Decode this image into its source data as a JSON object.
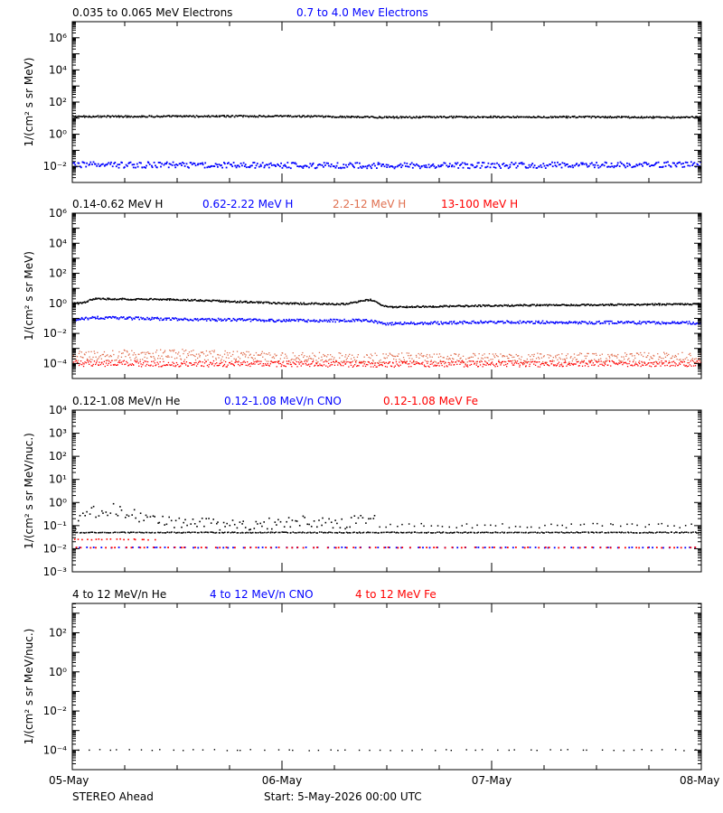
{
  "footer": {
    "spacecraft": "STEREO Ahead",
    "start_label": "Start:  5-May-2026 00:00 UTC"
  },
  "x_tick_labels": [
    "05-May",
    "06-May",
    "07-May",
    "08-May"
  ],
  "colors": {
    "black": "#000000",
    "blue": "#0000ff",
    "salmon": "#e07050",
    "red": "#ff0000",
    "axis": "#000000"
  },
  "chart_data": [
    {
      "type": "scatter",
      "ylabel": "1/(cm² s sr MeV)",
      "ylim_log10": [
        -3,
        7
      ],
      "yticks": [
        {
          "exp": 0,
          "label": "10⁰"
        },
        {
          "exp": 2,
          "label": "10²"
        },
        {
          "exp": 4,
          "label": "10⁴"
        },
        {
          "exp": 6,
          "label": "10⁶"
        },
        {
          "exp": -2,
          "label": "10⁻²"
        }
      ],
      "xlim_days": [
        0,
        3
      ],
      "legend": [
        {
          "label": "0.035 to 0.065 MeV Electrons",
          "color": "#000000"
        },
        {
          "label": "0.7 to 4.0 Mev Electrons",
          "color": "#0000ff"
        }
      ],
      "series": [
        {
          "name": "0.035 to 0.065 MeV Electrons",
          "color": "#000000",
          "profile": [
            [
              0,
              1.1
            ],
            [
              1.0,
              1.12
            ],
            [
              1.5,
              1.05
            ],
            [
              2.0,
              1.08
            ],
            [
              3.0,
              1.05
            ]
          ],
          "scatter": 0.05,
          "density": 620,
          "dot": 1.6
        },
        {
          "name": "0.7 to 4.0 Mev Electrons",
          "color": "#0000ff",
          "profile": [
            [
              0,
              -1.9
            ],
            [
              1.5,
              -1.95
            ],
            [
              3.0,
              -1.9
            ]
          ],
          "scatter": 0.18,
          "density": 520,
          "dot": 1.8
        }
      ]
    },
    {
      "type": "scatter",
      "ylabel": "1/(cm² s sr MeV)",
      "ylim_log10": [
        -5,
        6
      ],
      "yticks": [
        {
          "exp": -4,
          "label": "10⁻⁴"
        },
        {
          "exp": -2,
          "label": "10⁻²"
        },
        {
          "exp": 0,
          "label": "10⁰"
        },
        {
          "exp": 2,
          "label": "10²"
        },
        {
          "exp": 4,
          "label": "10⁴"
        },
        {
          "exp": 6,
          "label": "10⁶"
        }
      ],
      "xlim_days": [
        0,
        3
      ],
      "legend": [
        {
          "label": "0.14-0.62 MeV H",
          "color": "#000000"
        },
        {
          "label": "0.62-2.22 MeV H",
          "color": "#0000ff"
        },
        {
          "label": "2.2-12 MeV H",
          "color": "#e07050"
        },
        {
          "label": "13-100 MeV H",
          "color": "#ff0000"
        }
      ],
      "series": [
        {
          "name": "0.14-0.62 MeV H",
          "color": "#000000",
          "profile": [
            [
              0,
              0.0
            ],
            [
              0.05,
              0.0
            ],
            [
              0.1,
              0.3
            ],
            [
              0.5,
              0.25
            ],
            [
              0.7,
              0.15
            ],
            [
              1.0,
              0.0
            ],
            [
              1.3,
              -0.05
            ],
            [
              1.42,
              0.25
            ],
            [
              1.5,
              -0.25
            ],
            [
              2.0,
              -0.15
            ],
            [
              2.5,
              -0.1
            ],
            [
              3.0,
              -0.05
            ]
          ],
          "scatter": 0.05,
          "density": 640,
          "dot": 1.6
        },
        {
          "name": "0.62-2.22 MeV H",
          "color": "#0000ff",
          "profile": [
            [
              0,
              -1.1
            ],
            [
              0.1,
              -0.95
            ],
            [
              0.5,
              -1.05
            ],
            [
              1.0,
              -1.15
            ],
            [
              1.4,
              -1.15
            ],
            [
              1.5,
              -1.35
            ],
            [
              2.0,
              -1.25
            ],
            [
              3.0,
              -1.3
            ]
          ],
          "scatter": 0.09,
          "density": 600,
          "dot": 1.6
        },
        {
          "name": "2.2-12 MeV H",
          "color": "#e07050",
          "profile": [
            [
              0,
              -3.5
            ],
            [
              0.5,
              -3.4
            ],
            [
              1.0,
              -3.6
            ],
            [
              2.0,
              -3.7
            ],
            [
              3.0,
              -3.6
            ]
          ],
          "scatter": 0.35,
          "density": 700,
          "dot": 1.3
        },
        {
          "name": "13-100 MeV H",
          "color": "#ff0000",
          "profile": [
            [
              0,
              -4.0
            ],
            [
              1.5,
              -4.05
            ],
            [
              3.0,
              -4.0
            ]
          ],
          "scatter": 0.2,
          "density": 700,
          "dot": 1.3
        }
      ]
    },
    {
      "type": "scatter",
      "ylabel": "1/(cm² s sr MeV/nuc.)",
      "ylim_log10": [
        -3,
        4
      ],
      "yticks": [
        {
          "exp": -3,
          "label": "10⁻³"
        },
        {
          "exp": -2,
          "label": "10⁻²"
        },
        {
          "exp": -1,
          "label": "10⁻¹"
        },
        {
          "exp": 0,
          "label": "10⁰"
        },
        {
          "exp": 1,
          "label": "10¹"
        },
        {
          "exp": 2,
          "label": "10²"
        },
        {
          "exp": 3,
          "label": "10³"
        },
        {
          "exp": 4,
          "label": "10⁴"
        }
      ],
      "xlim_days": [
        0,
        3
      ],
      "legend": [
        {
          "label": "0.12-1.08 MeV/n He",
          "color": "#000000"
        },
        {
          "label": "0.12-1.08 MeV/n CNO",
          "color": "#0000ff"
        },
        {
          "label": "0.12-1.08 MeV Fe",
          "color": "#ff0000"
        }
      ],
      "series": [
        {
          "name": "0.12-1.08 MeV/n He",
          "color": "#000000",
          "profile": [
            [
              0,
              -1.3
            ],
            [
              3.0,
              -1.3
            ]
          ],
          "scatter": 0.02,
          "density": 380,
          "dot": 1.6
        },
        {
          "name": "0.12-1.08 MeV/n He (enhanced)",
          "color": "#000000",
          "profile": [
            [
              0.0,
              -1.0
            ],
            [
              0.1,
              -0.4
            ],
            [
              0.2,
              -0.3
            ],
            [
              0.4,
              -0.8
            ],
            [
              0.8,
              -1.0
            ],
            [
              1.1,
              -0.8
            ],
            [
              1.3,
              -0.9
            ],
            [
              1.43,
              -0.6
            ]
          ],
          "range": [
            0,
            1.45
          ],
          "scatter": 0.25,
          "density": 130,
          "dot": 1.6
        },
        {
          "name": "0.12-1.08 MeV/n He (sparse)",
          "color": "#000000",
          "profile": [
            [
              1.45,
              -1.0
            ],
            [
              3.0,
              -1.0
            ]
          ],
          "range": [
            1.45,
            3.0
          ],
          "scatter": 0.1,
          "density": 55,
          "dot": 1.5
        },
        {
          "name": "0.12-1.08 MeV/n CNO",
          "color": "#0000ff",
          "profile": [
            [
              0,
              -1.95
            ],
            [
              3.0,
              -1.95
            ]
          ],
          "scatter": 0.01,
          "density": 90,
          "dot": 1.8
        },
        {
          "name": "0.12-1.08 MeV Fe",
          "color": "#ff0000",
          "profile": [
            [
              0,
              -1.95
            ],
            [
              3.0,
              -1.95
            ]
          ],
          "scatter": 0.01,
          "density": 90,
          "dot": 1.8
        },
        {
          "name": "0.12-1.08 MeV Fe (early)",
          "color": "#ff0000",
          "profile": [
            [
              0,
              -1.6
            ],
            [
              0.4,
              -1.6
            ]
          ],
          "range": [
            0,
            0.4
          ],
          "scatter": 0.02,
          "density": 20,
          "dot": 1.6
        }
      ]
    },
    {
      "type": "scatter",
      "ylabel": "1/(cm² s sr MeV/nuc.)",
      "ylim_log10": [
        -5,
        3.5
      ],
      "yticks": [
        {
          "exp": -4,
          "label": "10⁻⁴"
        },
        {
          "exp": -2,
          "label": "10⁻²"
        },
        {
          "exp": 0,
          "label": "10⁰"
        },
        {
          "exp": 2,
          "label": "10²"
        }
      ],
      "xlim_days": [
        0,
        3
      ],
      "legend": [
        {
          "label": "4 to 12 MeV/n He",
          "color": "#000000"
        },
        {
          "label": "4 to 12 MeV/n CNO",
          "color": "#0000ff"
        },
        {
          "label": "4 to 12 MeV Fe",
          "color": "#ff0000"
        }
      ],
      "series": [
        {
          "name": "4 to 12 MeV/n He",
          "color": "#000000",
          "profile": [
            [
              0,
              -4.0
            ],
            [
              3.0,
              -4.0
            ]
          ],
          "scatter": 0.03,
          "density": 60,
          "dot": 1.4
        }
      ]
    }
  ]
}
